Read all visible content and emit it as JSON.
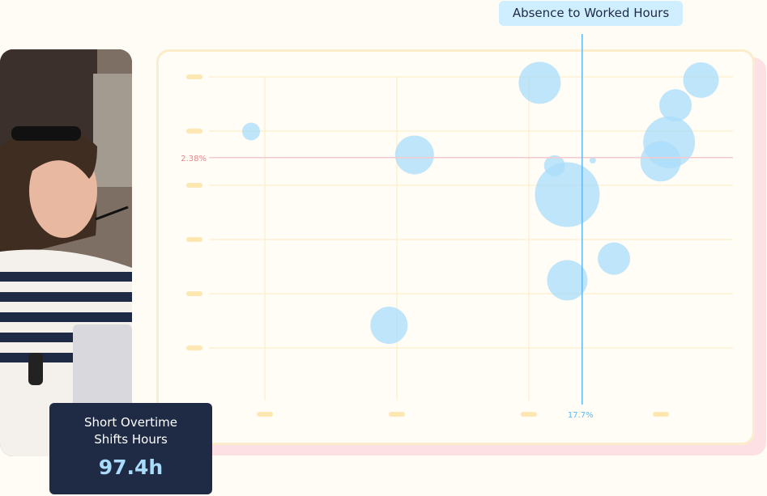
{
  "tooltip": {
    "label": "Absence to Worked Hours"
  },
  "stat_card": {
    "label_line1": "Short Overtime",
    "label_line2": "Shifts Hours",
    "value": "97.4h"
  },
  "photo": {
    "description": "woman-with-glasses-holding-pen"
  },
  "colors": {
    "bubble": "#a9dcfb",
    "highlight_x": "#5fb8ef",
    "highlight_y": "#e9848c",
    "grid": "#fdf0d2",
    "tick": "#fde7b2",
    "tooltip_bg": "#cfeeff",
    "stat_bg": "#1f2a44"
  },
  "chart_data": {
    "type": "scatter",
    "title": "",
    "xlabel": "Absence to Worked Hours",
    "ylabel": "",
    "x_highlight": {
      "value": 17.7,
      "label": "17.7%"
    },
    "y_highlight": {
      "value": 2.38,
      "label": "2.38%"
    },
    "xlim": [
      0,
      25
    ],
    "ylim": [
      0,
      3.5
    ],
    "grid": true,
    "points": [
      {
        "x": 2.1,
        "y": 2.67,
        "r": 11
      },
      {
        "x": 9.8,
        "y": 2.41,
        "r": 24
      },
      {
        "x": 8.6,
        "y": 0.52,
        "r": 23
      },
      {
        "x": 15.7,
        "y": 3.21,
        "r": 26
      },
      {
        "x": 16.4,
        "y": 2.29,
        "r": 13
      },
      {
        "x": 17.0,
        "y": 1.97,
        "r": 40
      },
      {
        "x": 17.0,
        "y": 1.02,
        "r": 25
      },
      {
        "x": 18.2,
        "y": 2.35,
        "r": 4
      },
      {
        "x": 19.2,
        "y": 1.26,
        "r": 20
      },
      {
        "x": 21.4,
        "y": 2.34,
        "r": 25
      },
      {
        "x": 21.8,
        "y": 2.55,
        "r": 32
      },
      {
        "x": 22.1,
        "y": 2.96,
        "r": 20
      },
      {
        "x": 23.3,
        "y": 3.24,
        "r": 22
      }
    ]
  }
}
